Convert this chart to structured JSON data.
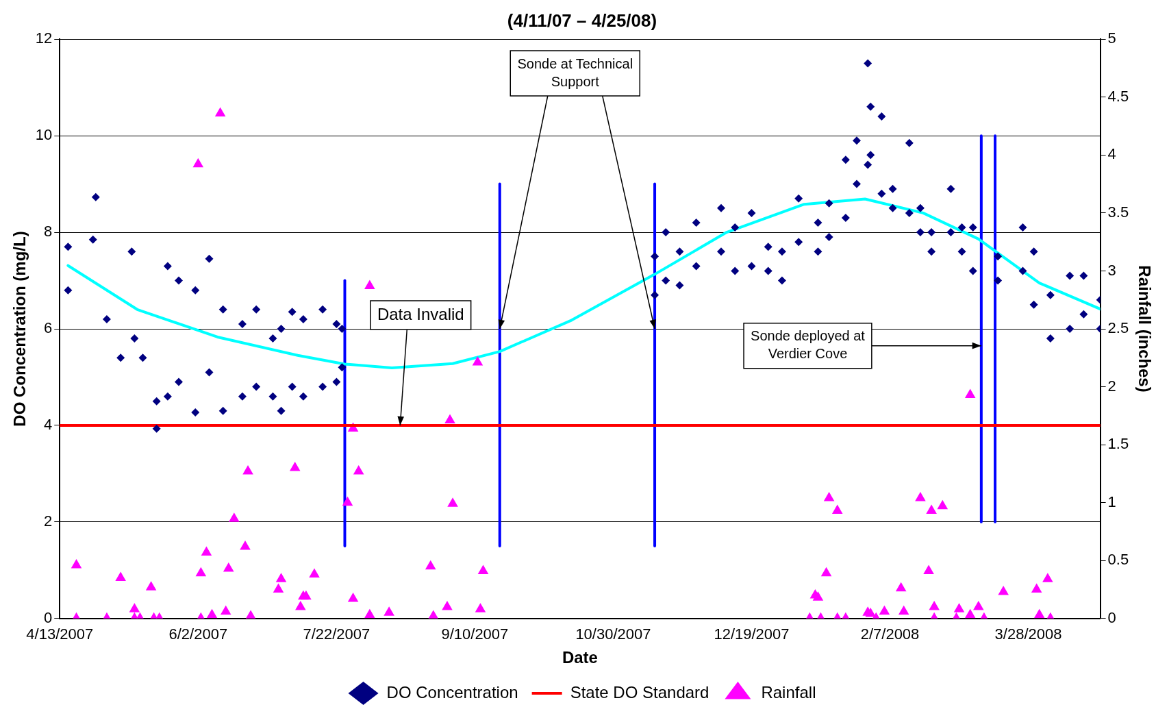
{
  "chart_data": {
    "type": "scatter",
    "title": "(4/11/07 – 4/25/08)",
    "xlabel": "Date",
    "ylabel": "DO Concentration (mg/L)",
    "y2label": "Rainfall (inches)",
    "xlim": [
      "2007-04-13",
      "2008-04-23"
    ],
    "xticks": [
      {
        "value": "2007-04-13",
        "label": "4/13/2007"
      },
      {
        "value": "2007-06-02",
        "label": "6/2/2007"
      },
      {
        "value": "2007-07-22",
        "label": "7/22/2007"
      },
      {
        "value": "2007-09-10",
        "label": "9/10/2007"
      },
      {
        "value": "2007-10-30",
        "label": "10/30/2007"
      },
      {
        "value": "2007-12-19",
        "label": "12/19/2007"
      },
      {
        "value": "2008-02-07",
        "label": "2/7/2008"
      },
      {
        "value": "2008-03-28",
        "label": "3/28/2008"
      }
    ],
    "ylim": [
      0,
      12
    ],
    "yticks": [
      0,
      2,
      4,
      6,
      8,
      10,
      12
    ],
    "y2lim": [
      0,
      5
    ],
    "y2ticks": [
      0,
      0.5,
      1,
      1.5,
      2,
      2.5,
      3,
      3.5,
      4,
      4.5,
      5
    ],
    "grid": "y",
    "legend": "bottom",
    "series": [
      {
        "name": "DO Concentration",
        "type": "scatter",
        "marker": "diamond",
        "color": "#000080",
        "x": [
          "2007-04-16",
          "2007-04-16",
          "2007-04-25",
          "2007-04-26",
          "2007-04-30",
          "2007-05-05",
          "2007-05-09",
          "2007-05-10",
          "2007-05-13",
          "2007-05-18",
          "2007-05-18",
          "2007-05-22",
          "2007-05-22",
          "2007-05-26",
          "2007-05-26",
          "2007-06-01",
          "2007-06-01",
          "2007-06-06",
          "2007-06-06",
          "2007-06-11",
          "2007-06-11",
          "2007-06-18",
          "2007-06-18",
          "2007-06-23",
          "2007-06-23",
          "2007-06-29",
          "2007-06-29",
          "2007-07-02",
          "2007-07-02",
          "2007-07-06",
          "2007-07-06",
          "2007-07-10",
          "2007-07-10",
          "2007-07-17",
          "2007-07-17",
          "2007-07-22",
          "2007-07-22",
          "2007-07-24",
          "2007-07-24",
          "2007-11-14",
          "2007-11-14",
          "2007-11-18",
          "2007-11-18",
          "2007-11-23",
          "2007-11-23",
          "2007-11-29",
          "2007-11-29",
          "2007-12-08",
          "2007-12-08",
          "2007-12-13",
          "2007-12-13",
          "2007-12-19",
          "2007-12-19",
          "2007-12-25",
          "2007-12-25",
          "2007-12-30",
          "2007-12-30",
          "2008-01-05",
          "2008-01-05",
          "2008-01-12",
          "2008-01-12",
          "2008-01-16",
          "2008-01-16",
          "2008-01-22",
          "2008-01-22",
          "2008-01-26",
          "2008-01-26",
          "2008-01-30",
          "2008-01-30",
          "2008-01-31",
          "2008-01-31",
          "2008-02-04",
          "2008-02-04",
          "2008-02-08",
          "2008-02-08",
          "2008-02-14",
          "2008-02-14",
          "2008-02-18",
          "2008-02-18",
          "2008-02-22",
          "2008-02-22",
          "2008-02-29",
          "2008-02-29",
          "2008-03-04",
          "2008-03-04",
          "2008-03-08",
          "2008-03-08",
          "2008-03-17",
          "2008-03-17",
          "2008-03-26",
          "2008-03-26",
          "2008-03-30",
          "2008-03-30",
          "2008-04-05",
          "2008-04-05",
          "2008-04-12",
          "2008-04-12",
          "2008-04-17",
          "2008-04-17",
          "2008-04-23",
          "2008-04-23"
        ],
        "values": [
          7.7,
          6.8,
          7.85,
          8.73,
          6.2,
          5.4,
          7.6,
          5.8,
          5.4,
          3.93,
          4.5,
          7.3,
          4.6,
          7.0,
          4.9,
          6.8,
          4.27,
          7.45,
          5.1,
          6.4,
          4.3,
          6.1,
          4.6,
          6.4,
          4.8,
          5.8,
          4.6,
          6.0,
          4.3,
          6.35,
          4.8,
          6.2,
          4.6,
          6.4,
          4.8,
          6.1,
          4.9,
          6.0,
          5.2,
          7.5,
          6.7,
          8.0,
          7.0,
          7.6,
          6.9,
          8.2,
          7.3,
          8.5,
          7.6,
          8.1,
          7.2,
          8.4,
          7.3,
          7.7,
          7.2,
          7.6,
          7.0,
          8.7,
          7.8,
          8.2,
          7.6,
          8.6,
          7.9,
          9.5,
          8.3,
          9.9,
          9.0,
          11.5,
          9.4,
          10.6,
          9.6,
          10.4,
          8.8,
          8.9,
          8.5,
          9.85,
          8.4,
          8.5,
          8.0,
          8.0,
          7.6,
          8.9,
          8.0,
          8.1,
          7.6,
          8.1,
          7.2,
          7.5,
          7.0,
          8.1,
          7.2,
          7.6,
          6.5,
          6.7,
          5.8,
          7.1,
          6.0,
          7.1,
          6.3,
          6.6,
          6.0
        ]
      },
      {
        "name": "State DO Standard",
        "type": "line",
        "color": "#ff0000",
        "x": [
          "2007-04-13",
          "2008-04-23"
        ],
        "values": [
          4,
          4
        ]
      },
      {
        "name": "Rainfall",
        "type": "scatter",
        "marker": "triangle",
        "axis": "y2",
        "color": "#ff00ff",
        "x": [
          "2007-04-19",
          "2007-04-19",
          "2007-04-30",
          "2007-05-05",
          "2007-05-10",
          "2007-05-10",
          "2007-05-12",
          "2007-05-16",
          "2007-05-17",
          "2007-05-19",
          "2007-06-02",
          "2007-06-03",
          "2007-06-03",
          "2007-06-05",
          "2007-06-07",
          "2007-06-10",
          "2007-06-12",
          "2007-06-13",
          "2007-06-15",
          "2007-06-19",
          "2007-06-20",
          "2007-06-21",
          "2007-07-01",
          "2007-07-02",
          "2007-07-07",
          "2007-07-09",
          "2007-07-10",
          "2007-07-11",
          "2007-07-14",
          "2007-07-26",
          "2007-07-28",
          "2007-07-28",
          "2007-07-30",
          "2007-08-03",
          "2007-08-03",
          "2007-08-10",
          "2007-08-25",
          "2007-08-26",
          "2007-08-31",
          "2007-09-01",
          "2007-09-02",
          "2007-09-11",
          "2007-09-12",
          "2007-09-13",
          "2008-01-09",
          "2008-01-11",
          "2008-01-12",
          "2008-01-13",
          "2008-01-15",
          "2008-01-16",
          "2008-01-19",
          "2008-01-19",
          "2008-01-22",
          "2008-01-30",
          "2008-01-31",
          "2008-02-02",
          "2008-02-05",
          "2008-02-11",
          "2008-02-12",
          "2008-02-18",
          "2008-02-21",
          "2008-02-22",
          "2008-02-23",
          "2008-02-23",
          "2008-02-26",
          "2008-03-02",
          "2008-03-03",
          "2008-03-07",
          "2008-03-07",
          "2008-03-10",
          "2008-03-12",
          "2008-03-19",
          "2008-03-31",
          "2008-04-01",
          "2008-04-04",
          "2008-04-05"
        ],
        "values": [
          0.46,
          0,
          0,
          0.35,
          0.08,
          0,
          0,
          0.27,
          0,
          0,
          3.92,
          0.39,
          0,
          0.57,
          0.03,
          4.36,
          0.06,
          0.43,
          0.86,
          0.62,
          1.27,
          0.02,
          0.25,
          0.34,
          1.3,
          0.1,
          0.19,
          0.19,
          0.38,
          1.0,
          1.64,
          0.17,
          1.27,
          2.87,
          0.03,
          0.05,
          0.45,
          0.02,
          0.1,
          1.71,
          0.99,
          2.21,
          0.08,
          0.41,
          0,
          0.2,
          0.18,
          0,
          0.39,
          1.04,
          0.93,
          0,
          0,
          0.05,
          0.04,
          0,
          0.06,
          0.26,
          0.06,
          1.04,
          0.41,
          0.93,
          0.1,
          0,
          0.97,
          0,
          0.08,
          1.93,
          0.03,
          0.1,
          0,
          0.23,
          0.25,
          0.03,
          0.34,
          0
        ]
      },
      {
        "type": "line",
        "color": "#00ffff",
        "x": [
          "2007-04-16",
          "2007-05-11",
          "2007-06-09",
          "2007-07-08",
          "2007-07-25",
          "2007-08-11",
          "2007-09-02",
          "2007-09-19",
          "2007-10-15",
          "2007-11-14",
          "2007-12-10",
          "2008-01-07",
          "2008-01-29",
          "2008-02-19",
          "2008-03-10",
          "2008-04-01",
          "2008-04-23"
        ],
        "values": [
          7.31,
          6.4,
          5.83,
          5.45,
          5.27,
          5.19,
          5.28,
          5.53,
          6.18,
          7.13,
          8.0,
          8.58,
          8.69,
          8.4,
          7.86,
          6.95,
          6.41
        ]
      },
      {
        "type": "line",
        "color": "#0000ff",
        "x": [
          "2007-07-25",
          "2007-07-25"
        ],
        "values": [
          1.5,
          7
        ]
      },
      {
        "type": "line",
        "color": "#0000ff",
        "x": [
          "2007-09-19",
          "2007-09-19"
        ],
        "values": [
          1.5,
          9
        ]
      },
      {
        "type": "line",
        "color": "#0000ff",
        "x": [
          "2007-11-14",
          "2007-11-14"
        ],
        "values": [
          1.5,
          9
        ]
      },
      {
        "type": "line",
        "color": "#0000ff",
        "x": [
          "2008-03-11",
          "2008-03-11"
        ],
        "values": [
          2,
          10
        ]
      },
      {
        "type": "line",
        "color": "#0000ff",
        "x": [
          "2008-03-16",
          "2008-03-16"
        ],
        "values": [
          2,
          10
        ]
      }
    ],
    "annotations": [
      {
        "text": "Data Invalid",
        "x": "2007-08-14",
        "y": 4
      },
      {
        "text": "Sonde at Technical Support",
        "x": "2007-09-19",
        "y": 6
      },
      {
        "text": "Sonde deployed at Verdier Cove",
        "x": "2008-03-11",
        "y": 5.65
      }
    ]
  }
}
